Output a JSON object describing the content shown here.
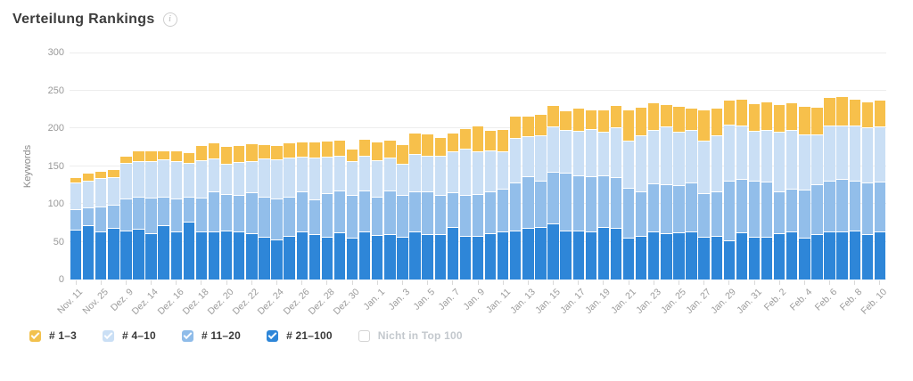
{
  "title": "Verteilung Rankings",
  "info_icon_glyph": "i",
  "colors": {
    "pos_1_3": "#F7C04B",
    "pos_4_10": "#CADFF5",
    "pos_11_20": "#92BEEA",
    "pos_21_100": "#2E86D8",
    "gridline": "#ededed",
    "axis_text": "#999999",
    "disabled_text": "#c3c8cd"
  },
  "chart_data": {
    "type": "bar",
    "stacked": true,
    "title": "Verteilung Rankings",
    "ylabel": "Keywords",
    "ylim": [
      0,
      300
    ],
    "yticks": [
      0,
      50,
      100,
      150,
      200,
      250,
      300
    ],
    "grid": true,
    "num_bars": 65,
    "x_label_every": 2,
    "x_tick_labels": [
      "Nov. 11",
      "Nov. 25",
      "Dez. 9",
      "Dez. 14",
      "Dez. 16",
      "Dez. 18",
      "Dez. 20",
      "Dez. 22",
      "Dez. 24",
      "Dez. 26",
      "Dez. 28",
      "Dez. 30",
      "Jan. 1",
      "Jan. 3",
      "Jan. 5",
      "Jan. 7",
      "Jan. 9",
      "Jan. 11",
      "Jan. 13",
      "Jan. 15",
      "Jan. 17",
      "Jan. 19",
      "Jan. 21",
      "Jan. 23",
      "Jan. 25",
      "Jan. 27",
      "Jan. 29",
      "Jan. 31",
      "Feb. 2",
      "Feb. 4",
      "Feb. 6",
      "Feb. 8",
      "Feb. 10"
    ],
    "series": [
      {
        "name": "# 21–100",
        "color": "#2E86D8",
        "values": [
          66,
          72,
          63,
          68,
          65,
          67,
          61,
          72,
          63,
          76,
          63,
          64,
          65,
          64,
          61,
          57,
          53,
          58,
          64,
          60,
          57,
          62,
          55,
          63,
          59,
          60,
          56,
          63,
          60,
          60,
          70,
          58,
          58,
          61,
          64,
          65,
          68,
          70,
          74,
          65,
          65,
          63,
          70,
          68,
          55,
          58,
          64,
          61,
          62,
          63,
          57,
          58,
          52,
          62,
          57,
          57,
          61,
          63,
          55,
          60,
          63,
          64,
          65,
          60,
          64
        ]
      },
      {
        "name": "# 11–20",
        "color": "#92BEEA",
        "values": [
          27,
          23,
          34,
          31,
          42,
          42,
          47,
          37,
          44,
          33,
          45,
          52,
          48,
          48,
          54,
          53,
          54,
          52,
          52,
          46,
          57,
          56,
          57,
          55,
          51,
          58,
          56,
          54,
          56,
          52,
          45,
          54,
          55,
          55,
          56,
          63,
          69,
          61,
          68,
          76,
          73,
          74,
          68,
          67,
          66,
          59,
          63,
          65,
          63,
          65,
          57,
          59,
          79,
          71,
          74,
          72,
          56,
          57,
          64,
          66,
          68,
          69,
          66,
          68,
          65
        ]
      },
      {
        "name": "# 4–10",
        "color": "#CADFF5",
        "values": [
          35,
          36,
          37,
          36,
          47,
          48,
          48,
          50,
          49,
          45,
          50,
          44,
          40,
          43,
          42,
          50,
          52,
          51,
          46,
          55,
          48,
          46,
          44,
          46,
          48,
          43,
          41,
          49,
          48,
          52,
          55,
          61,
          57,
          55,
          49,
          59,
          52,
          60,
          60,
          57,
          58,
          62,
          57,
          66,
          62,
          74,
          71,
          76,
          70,
          70,
          70,
          74,
          74,
          70,
          65,
          69,
          78,
          78,
          73,
          66,
          73,
          70,
          73,
          73,
          73
        ]
      },
      {
        "name": "# 1–3",
        "color": "#F7C04B",
        "values": [
          6,
          9,
          8,
          10,
          8,
          13,
          13,
          10,
          13,
          13,
          18,
          20,
          22,
          22,
          22,
          18,
          18,
          19,
          19,
          20,
          20,
          20,
          16,
          21,
          23,
          23,
          25,
          27,
          28,
          23,
          23,
          26,
          32,
          25,
          29,
          28,
          26,
          27,
          28,
          24,
          30,
          25,
          29,
          29,
          41,
          36,
          35,
          29,
          33,
          28,
          39,
          35,
          32,
          35,
          36,
          36,
          36,
          35,
          36,
          35,
          36,
          38,
          34,
          33,
          35
        ]
      }
    ]
  },
  "legend": {
    "items": [
      {
        "label": "# 1–3",
        "color": "#F2C14D",
        "checked": true,
        "disabled": false
      },
      {
        "label": "# 4–10",
        "color": "#CADFF5",
        "checked": true,
        "disabled": false
      },
      {
        "label": "# 11–20",
        "color": "#8FBCE9",
        "checked": true,
        "disabled": false
      },
      {
        "label": "# 21–100",
        "color": "#2E86D8",
        "checked": true,
        "disabled": false
      },
      {
        "label": "Nicht in Top 100",
        "color": "#ffffff",
        "checked": false,
        "disabled": true
      }
    ]
  }
}
